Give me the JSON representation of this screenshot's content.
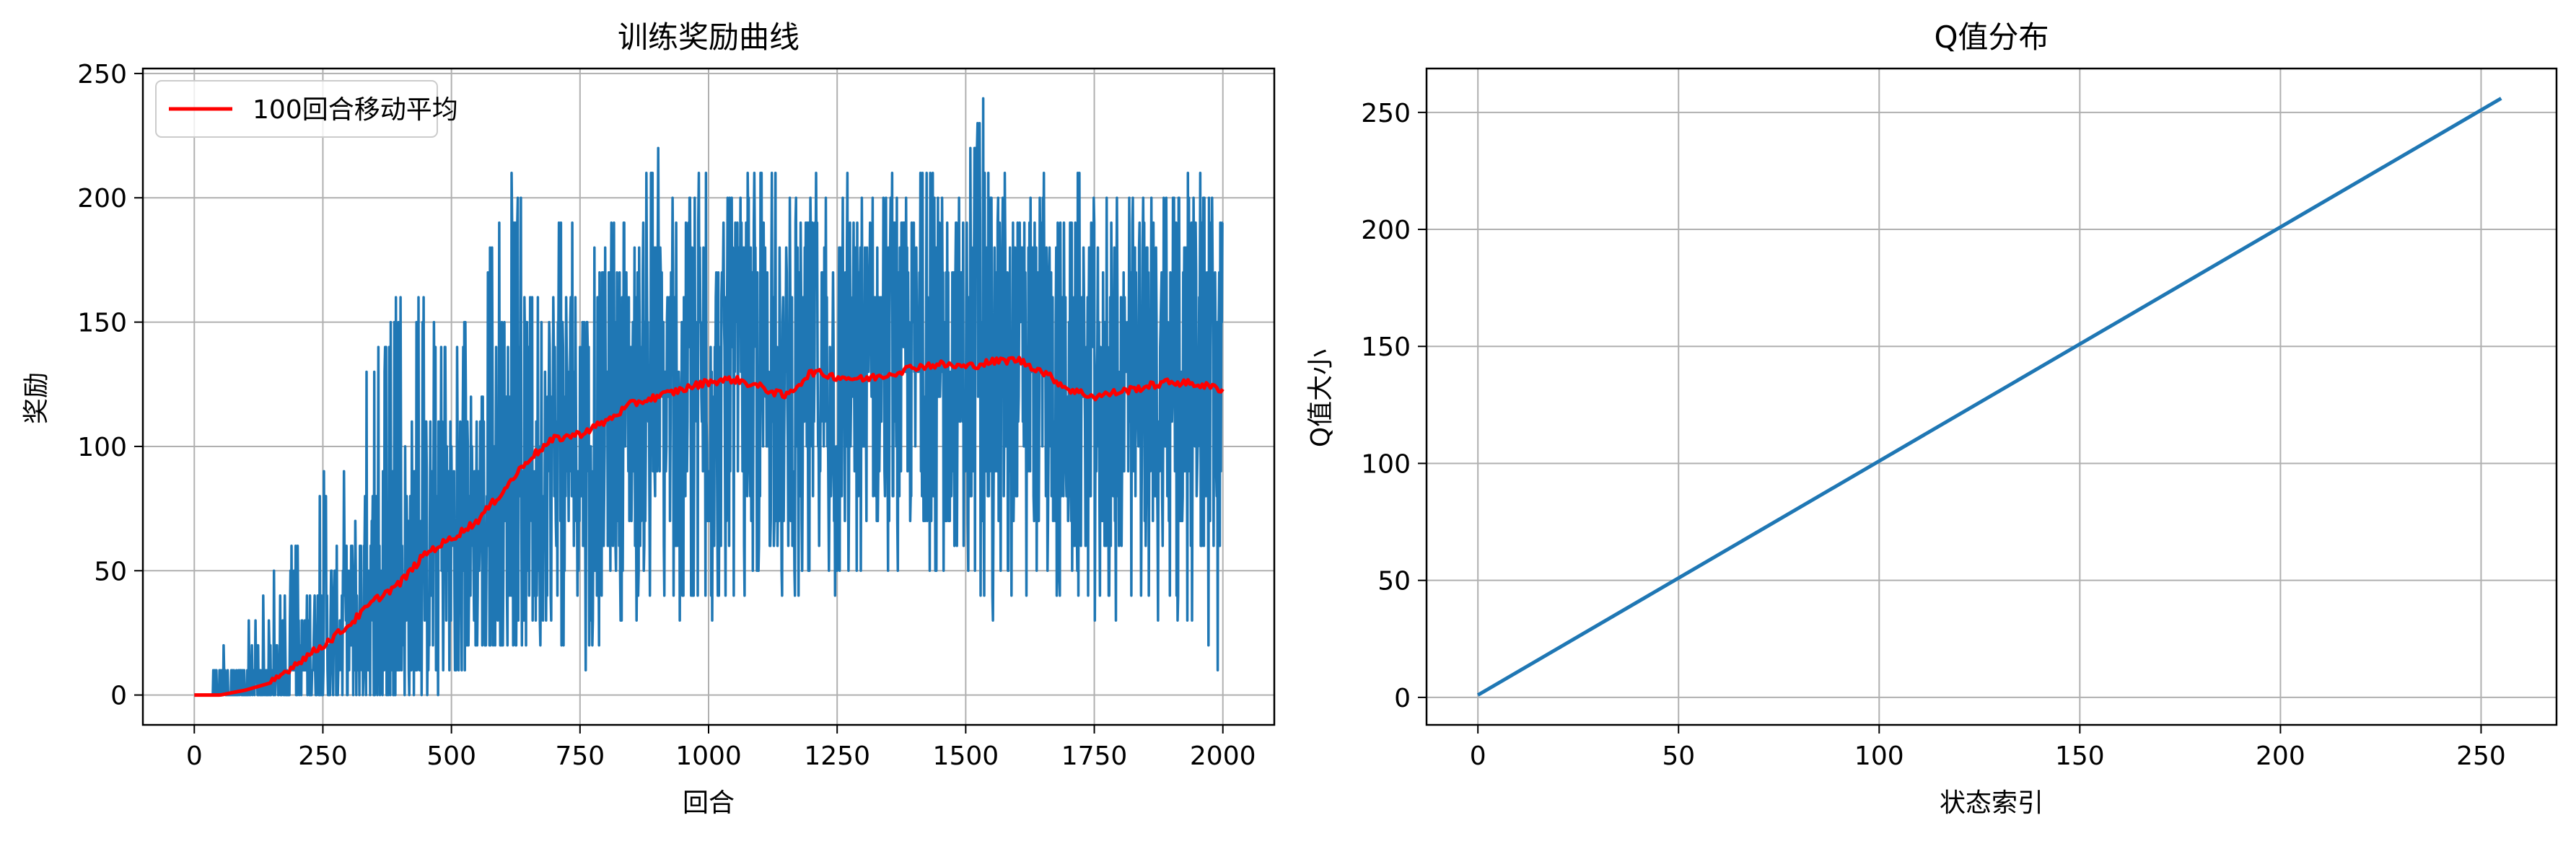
{
  "chart_data": [
    {
      "type": "line",
      "title": "训练奖励曲线",
      "xlabel": "回合",
      "ylabel": "奖励",
      "xlim": [
        -100,
        2100
      ],
      "ylim": [
        -12,
        252
      ],
      "xticks": [
        0,
        250,
        500,
        750,
        1000,
        1250,
        1500,
        1750,
        2000
      ],
      "yticks": [
        0,
        50,
        100,
        150,
        200,
        250
      ],
      "grid": true,
      "legend": {
        "placement": "top-left",
        "entries": [
          "100回合移动平均"
        ]
      },
      "series": [
        {
          "name": "",
          "color": "#1f77b4",
          "description": "per-episode reward, 2000 episodes, noisy",
          "envelope": {
            "x": [
              0,
              50,
              100,
              150,
              200,
              250,
              300,
              350,
              400,
              450,
              500,
              550,
              600,
              650,
              700,
              750,
              800,
              850,
              900,
              950,
              1000,
              1050,
              1100,
              1150,
              1200,
              1250,
              1300,
              1350,
              1400,
              1450,
              1500,
              1550,
              1600,
              1650,
              1700,
              1750,
              1800,
              1850,
              1900,
              1950,
              2000
            ],
            "low": [
              0,
              0,
              0,
              0,
              0,
              0,
              0,
              0,
              0,
              0,
              0,
              10,
              20,
              20,
              20,
              10,
              20,
              30,
              30,
              30,
              30,
              30,
              40,
              40,
              40,
              40,
              40,
              40,
              40,
              40,
              40,
              30,
              40,
              40,
              40,
              30,
              30,
              30,
              30,
              30,
              0
            ],
            "high": [
              0,
              20,
              30,
              50,
              60,
              90,
              100,
              140,
              160,
              160,
              150,
              160,
              210,
              200,
              200,
              180,
              200,
              200,
              220,
              200,
              220,
              200,
              220,
              210,
              210,
              220,
              200,
              210,
              210,
              220,
              230,
              240,
              200,
              210,
              220,
              200,
              210,
              200,
              210,
              210,
              200
            ]
          }
        },
        {
          "name": "100回合移动平均",
          "color": "#ff0000",
          "x": [
            0,
            50,
            100,
            150,
            200,
            250,
            300,
            350,
            400,
            450,
            500,
            550,
            600,
            650,
            700,
            750,
            800,
            850,
            900,
            950,
            1000,
            1050,
            1100,
            1150,
            1200,
            1250,
            1300,
            1350,
            1400,
            1450,
            1500,
            1550,
            1600,
            1650,
            1700,
            1750,
            1800,
            1850,
            1900,
            1950,
            2000
          ],
          "y": [
            0,
            0,
            2,
            5,
            13,
            20,
            28,
            38,
            45,
            57,
            63,
            70,
            82,
            95,
            103,
            105,
            110,
            117,
            120,
            123,
            126,
            127,
            124,
            120,
            130,
            128,
            127,
            129,
            132,
            133,
            132,
            134,
            135,
            130,
            123,
            120,
            122,
            124,
            126,
            125,
            123
          ]
        }
      ]
    },
    {
      "type": "line",
      "title": "Q值分布",
      "xlabel": "状态索引",
      "ylabel": "Q值大小",
      "xlim": [
        -12.8,
        268.8
      ],
      "ylim": [
        -11.75,
        268.75
      ],
      "xticks": [
        0,
        50,
        100,
        150,
        200,
        250
      ],
      "yticks": [
        0,
        50,
        100,
        150,
        200,
        250
      ],
      "grid": true,
      "series": [
        {
          "name": "",
          "color": "#1f77b4",
          "x": [
            0,
            255
          ],
          "y": [
            1,
            256
          ]
        }
      ]
    }
  ]
}
